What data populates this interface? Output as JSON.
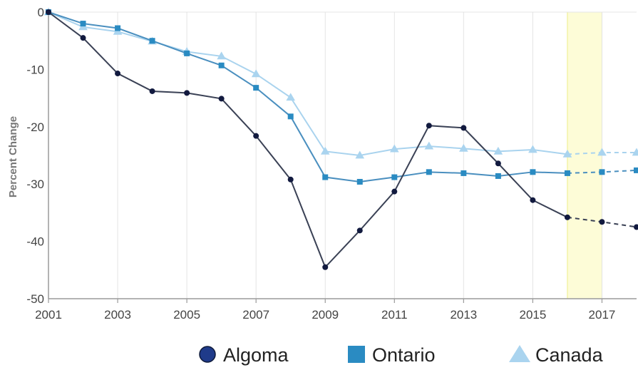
{
  "chart_data": {
    "type": "line",
    "xlabel": "",
    "ylabel": "Percent Change",
    "xlim": [
      2001,
      2018
    ],
    "ylim": [
      -50,
      0
    ],
    "xticks": [
      2001,
      2003,
      2005,
      2007,
      2009,
      2011,
      2013,
      2015,
      2017
    ],
    "yticks": [
      0,
      -10,
      -20,
      -30,
      -40,
      -50
    ],
    "x": [
      2001,
      2002,
      2003,
      2004,
      2005,
      2006,
      2007,
      2008,
      2009,
      2010,
      2011,
      2012,
      2013,
      2014,
      2015,
      2016,
      2017,
      2018
    ],
    "projection_start": 2016,
    "highlight_band": [
      2016,
      2017
    ],
    "highlight_color": "#fdfcd7",
    "grid": "vertical",
    "legend_position": "bottom",
    "series": [
      {
        "name": "Algoma",
        "marker": "circle",
        "line_color": "#3a4155",
        "marker_color": "#121a3f",
        "legend_color": "#1f3b8a",
        "values": [
          0,
          -4.5,
          -10.7,
          -13.8,
          -14.1,
          -15.1,
          -21.6,
          -29.2,
          -44.5,
          -38.1,
          -31.3,
          -19.8,
          -20.2,
          -26.4,
          -32.8,
          -35.8,
          -36.6,
          -37.5
        ]
      },
      {
        "name": "Ontario",
        "marker": "square",
        "line_color": "#4a8fbf",
        "marker_color": "#2a8bc2",
        "legend_color": "#2a8bc2",
        "values": [
          0,
          -2,
          -2.8,
          -5,
          -7.2,
          -9.3,
          -13.2,
          -18.2,
          -28.8,
          -29.6,
          -28.8,
          -27.9,
          -28.1,
          -28.6,
          -27.9,
          -28.1,
          -27.9,
          -27.6
        ]
      },
      {
        "name": "Canada",
        "marker": "triangle",
        "line_color": "#a9d3ee",
        "marker_color": "#aad4ef",
        "legend_color": "#aad4ef",
        "values": [
          0,
          -2.6,
          -3.4,
          -5.1,
          -6.9,
          -7.7,
          -10.8,
          -14.9,
          -24.3,
          -25,
          -23.9,
          -23.4,
          -23.8,
          -24.3,
          -24,
          -24.8,
          -24.5,
          -24.5
        ]
      }
    ]
  }
}
